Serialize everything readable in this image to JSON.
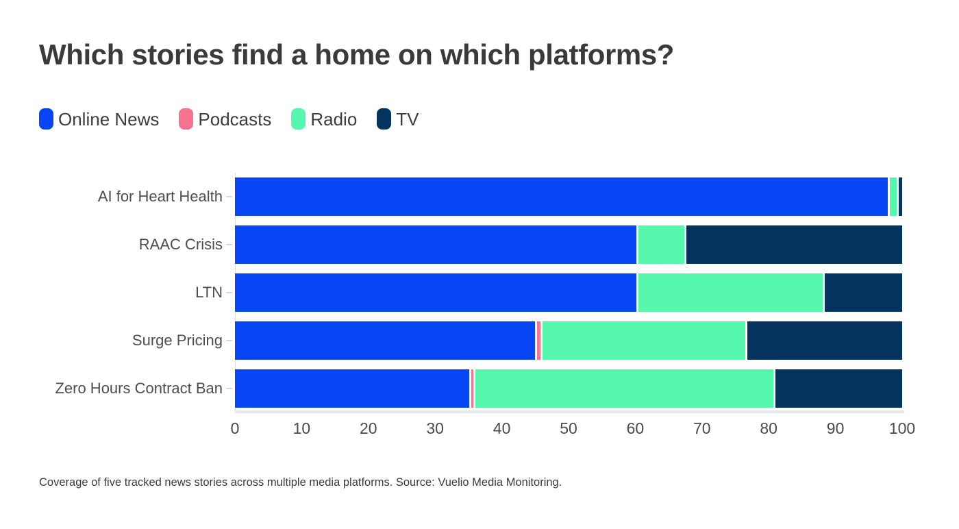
{
  "title": "Which stories find a home on which platforms?",
  "caption": "Coverage of five tracked news stories across multiple media platforms. Source: Vuelio Media Monitoring.",
  "colors": {
    "online_news": "#0646f5",
    "podcasts": "#f9738f",
    "radio": "#55f7ad",
    "tv": "#04335e",
    "axis_band": "#e7e8ea",
    "tick_dash": "#d9d9d9",
    "title_text": "#3a3a3a",
    "label_text": "#4d4d4d"
  },
  "chart_data": {
    "type": "bar",
    "orientation": "horizontal",
    "stacked": true,
    "title": "Which stories find a home on which platforms?",
    "xlabel": "",
    "ylabel": "",
    "xlim": [
      0,
      100
    ],
    "x_ticks": [
      0,
      10,
      20,
      30,
      40,
      50,
      60,
      70,
      80,
      90,
      100
    ],
    "grid": false,
    "legend_position": "top-left",
    "categories": [
      "AI for Heart Health",
      "RAAC Crisis",
      "LTN",
      "Surge Pricing",
      "Zero Hours Contract Ban"
    ],
    "series": [
      {
        "name": "Online News",
        "color": "#0646f5",
        "values": [
          98.4,
          60.5,
          60.5,
          45.4,
          35.4
        ]
      },
      {
        "name": "Podcasts",
        "color": "#f9738f",
        "values": [
          0,
          0,
          0,
          0.5,
          0.4
        ]
      },
      {
        "name": "Radio",
        "color": "#55f7ad",
        "values": [
          1.1,
          7.0,
          27.8,
          30.7,
          45.0
        ]
      },
      {
        "name": "TV",
        "color": "#04335e",
        "values": [
          0.5,
          32.5,
          11.7,
          23.4,
          19.2
        ]
      }
    ]
  }
}
